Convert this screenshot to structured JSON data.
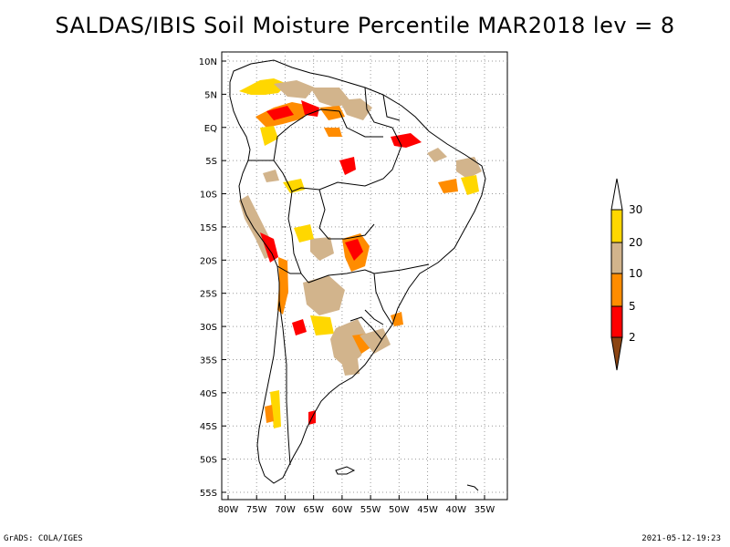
{
  "title": "SALDAS/IBIS Soil Moisture Percentile MAR2018 lev = 8",
  "footer": {
    "left": "GrADS: COLA/IGES",
    "right": "2021-05-12-19:23"
  },
  "map": {
    "lat_labels": [
      "10N",
      "5N",
      "EQ",
      "5S",
      "10S",
      "15S",
      "20S",
      "25S",
      "30S",
      "35S",
      "40S",
      "45S",
      "50S",
      "55S"
    ],
    "lon_labels": [
      "80W",
      "75W",
      "70W",
      "65W",
      "60W",
      "55W",
      "50W",
      "45W",
      "40W",
      "35W"
    ],
    "lat_range": [
      -56,
      11
    ],
    "lon_range": [
      -81,
      -34
    ],
    "grid": "dotted"
  },
  "colorbar": {
    "labels": [
      "2",
      "5",
      "10",
      "20",
      "30"
    ],
    "colors": {
      "below_2": "#8b4513",
      "2_5": "#ff0000",
      "5_10": "#ff8c00",
      "10_20": "#d2b48c",
      "20_30": "#ffd700",
      "above_30": "#ffffff"
    }
  },
  "colors": {
    "outline": "#000000",
    "grid": "#999999"
  }
}
